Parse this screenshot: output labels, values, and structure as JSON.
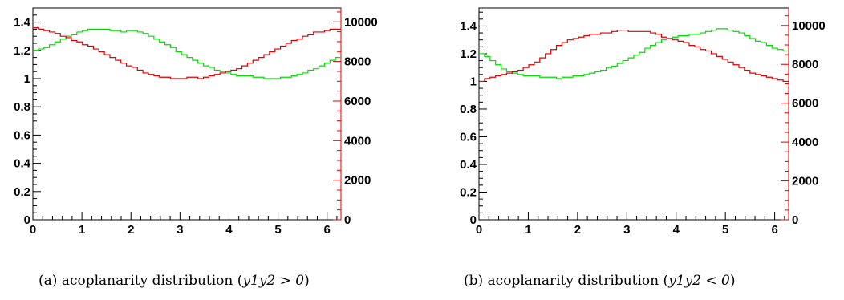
{
  "chart_data": [
    {
      "type": "line",
      "panel": "a",
      "caption_prefix": "(a) acoplanarity distribution (",
      "caption_math": "y1y2 > 0",
      "caption_suffix": ")",
      "x_ticks": [
        "0",
        "1",
        "2",
        "3",
        "4",
        "5",
        "6"
      ],
      "xlim": [
        0,
        6.283
      ],
      "ylim_left": [
        0,
        1.5
      ],
      "y_ticks_left": [
        "0",
        "0.2",
        "0.4",
        "0.6",
        "0.8",
        "1",
        "1.2",
        "1.4"
      ],
      "ylim_right": [
        0,
        10700
      ],
      "y_ticks_right": [
        "0",
        "2000",
        "4000",
        "6000",
        "8000",
        "10000"
      ],
      "colors": {
        "green": "#00dd00",
        "red": "#dd0000"
      },
      "series": [
        {
          "axis": "left",
          "color_key": "green",
          "values": [
            1.2,
            1.21,
            1.22,
            1.24,
            1.26,
            1.28,
            1.3,
            1.31,
            1.33,
            1.34,
            1.35,
            1.35,
            1.35,
            1.35,
            1.34,
            1.34,
            1.33,
            1.34,
            1.34,
            1.33,
            1.32,
            1.3,
            1.28,
            1.26,
            1.24,
            1.22,
            1.19,
            1.17,
            1.15,
            1.13,
            1.11,
            1.09,
            1.08,
            1.06,
            1.05,
            1.04,
            1.03,
            1.02,
            1.02,
            1.02,
            1.01,
            1.01,
            1.0,
            1.0,
            1.0,
            1.01,
            1.01,
            1.02,
            1.03,
            1.04,
            1.06,
            1.07,
            1.09,
            1.11,
            1.13,
            1.15
          ]
        },
        {
          "axis": "left",
          "color_key": "red",
          "values": [
            1.36,
            1.35,
            1.34,
            1.33,
            1.32,
            1.3,
            1.29,
            1.27,
            1.26,
            1.24,
            1.23,
            1.21,
            1.19,
            1.17,
            1.15,
            1.13,
            1.11,
            1.09,
            1.08,
            1.06,
            1.04,
            1.03,
            1.02,
            1.01,
            1.01,
            1.0,
            1.0,
            1.0,
            1.01,
            1.01,
            1.0,
            1.01,
            1.02,
            1.03,
            1.04,
            1.05,
            1.06,
            1.07,
            1.09,
            1.11,
            1.13,
            1.15,
            1.17,
            1.19,
            1.21,
            1.23,
            1.25,
            1.27,
            1.28,
            1.3,
            1.31,
            1.33,
            1.33,
            1.34,
            1.35,
            1.35
          ]
        }
      ]
    },
    {
      "type": "line",
      "panel": "b",
      "caption_prefix": "(b) acoplanarity distribution (",
      "caption_math": "y1y2 < 0",
      "caption_suffix": ")",
      "x_ticks": [
        "0",
        "1",
        "2",
        "3",
        "4",
        "5",
        "6"
      ],
      "xlim": [
        0,
        6.283
      ],
      "ylim_left": [
        0,
        1.53
      ],
      "y_ticks_left": [
        "0",
        "0.2",
        "0.4",
        "0.6",
        "0.8",
        "1",
        "1.2",
        "1.4"
      ],
      "ylim_right": [
        0,
        10900
      ],
      "y_ticks_right": [
        "0",
        "2000",
        "4000",
        "6000",
        "8000",
        "10000"
      ],
      "colors": {
        "green": "#00dd00",
        "red": "#dd0000"
      },
      "series": [
        {
          "axis": "left",
          "color_key": "green",
          "values": [
            1.2,
            1.18,
            1.15,
            1.12,
            1.09,
            1.07,
            1.06,
            1.05,
            1.04,
            1.04,
            1.04,
            1.03,
            1.03,
            1.03,
            1.02,
            1.03,
            1.03,
            1.04,
            1.04,
            1.05,
            1.06,
            1.07,
            1.08,
            1.1,
            1.11,
            1.13,
            1.15,
            1.17,
            1.19,
            1.21,
            1.24,
            1.26,
            1.28,
            1.3,
            1.31,
            1.32,
            1.33,
            1.33,
            1.34,
            1.34,
            1.35,
            1.36,
            1.37,
            1.38,
            1.38,
            1.37,
            1.36,
            1.35,
            1.33,
            1.31,
            1.29,
            1.28,
            1.26,
            1.24,
            1.23,
            1.22
          ]
        },
        {
          "axis": "left",
          "color_key": "red",
          "values": [
            1.0,
            1.02,
            1.03,
            1.04,
            1.05,
            1.06,
            1.07,
            1.08,
            1.1,
            1.12,
            1.14,
            1.17,
            1.2,
            1.23,
            1.26,
            1.28,
            1.3,
            1.31,
            1.32,
            1.33,
            1.34,
            1.34,
            1.35,
            1.35,
            1.36,
            1.37,
            1.37,
            1.36,
            1.36,
            1.36,
            1.36,
            1.35,
            1.34,
            1.32,
            1.31,
            1.3,
            1.29,
            1.28,
            1.26,
            1.25,
            1.23,
            1.22,
            1.2,
            1.18,
            1.16,
            1.14,
            1.12,
            1.1,
            1.08,
            1.06,
            1.05,
            1.04,
            1.03,
            1.02,
            1.01,
            1.0
          ]
        }
      ]
    }
  ]
}
